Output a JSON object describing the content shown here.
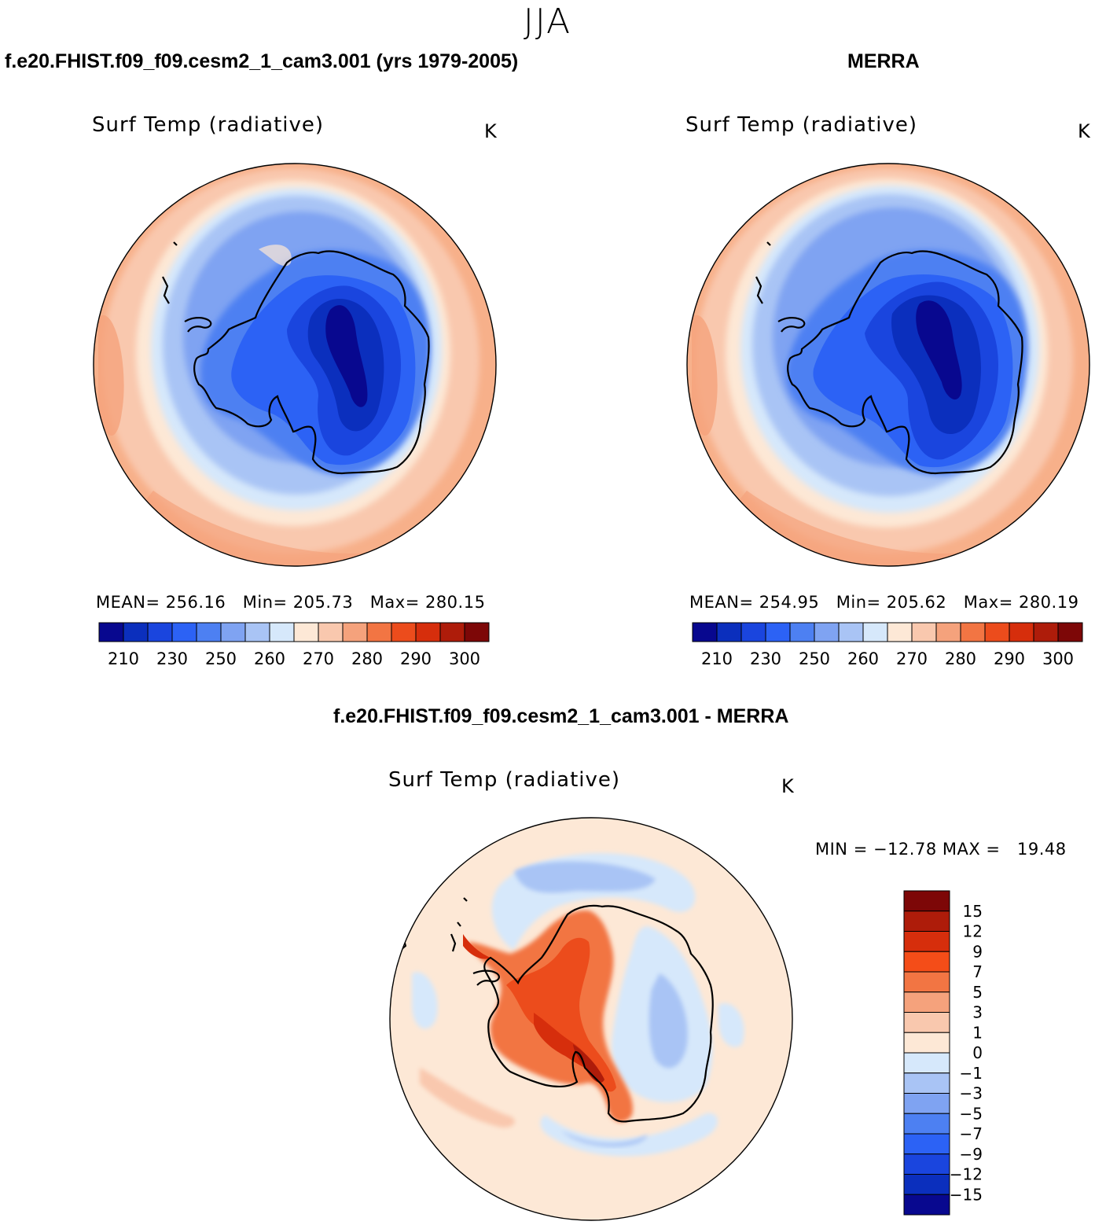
{
  "season": "JJA",
  "panels": [
    {
      "id": "model",
      "case_title": "f.e20.FHIST.f09_f09.cesm2_1_cam3.001 (yrs 1979-2005)",
      "variable": "Surf Temp (radiative)",
      "units": "K",
      "stats": {
        "mean": "256.16",
        "min": "205.73",
        "max": "280.15"
      },
      "stats_line": "MEAN= 256.16   Min= 205.73   Max= 280.15"
    },
    {
      "id": "obs",
      "case_title": "MERRA",
      "variable": "Surf Temp (radiative)",
      "units": "K",
      "stats": {
        "mean": "254.95",
        "min": "205.62",
        "max": "280.19"
      },
      "stats_line": "MEAN= 254.95   Min= 205.62   Max= 280.19"
    },
    {
      "id": "diff",
      "case_title": "f.e20.FHIST.f09_f09.cesm2_1_cam3.001 - MERRA",
      "variable": "Surf Temp (radiative)",
      "units": "K",
      "stats": {
        "min": "-12.78",
        "max": "19.48"
      },
      "stats_line": "MIN = −12.78 MAX =   19.48"
    }
  ],
  "abs_colorbar": {
    "colors": [
      "#08088f",
      "#0b2fbd",
      "#1a45de",
      "#2c62f5",
      "#4d80f2",
      "#7fa3f2",
      "#a9c4f5",
      "#d6e8fb",
      "#fde8d6",
      "#f9c8ae",
      "#f5a27c",
      "#f27543",
      "#ec4c1c",
      "#d62e0c",
      "#ae1c0a",
      "#7d0707"
    ],
    "tick_labels": [
      "210",
      "230",
      "250",
      "260",
      "270",
      "280",
      "290",
      "300"
    ]
  },
  "diff_colorbar": {
    "colors_top_to_bottom": [
      "#7d0707",
      "#ae1c0a",
      "#d62e0c",
      "#f44d18",
      "#f27543",
      "#f5a27c",
      "#f9c8ae",
      "#fde8d6",
      "#d6e8fb",
      "#a9c4f5",
      "#7fa3f2",
      "#4d80f2",
      "#2c62f5",
      "#1a45de",
      "#0b2fbd",
      "#08088f"
    ],
    "tick_labels_top_to_bottom": [
      "15",
      "12",
      "9",
      "7",
      "5",
      "3",
      "1",
      "0",
      "−1",
      "−3",
      "−5",
      "−7",
      "−9",
      "−12",
      "−15"
    ]
  }
}
